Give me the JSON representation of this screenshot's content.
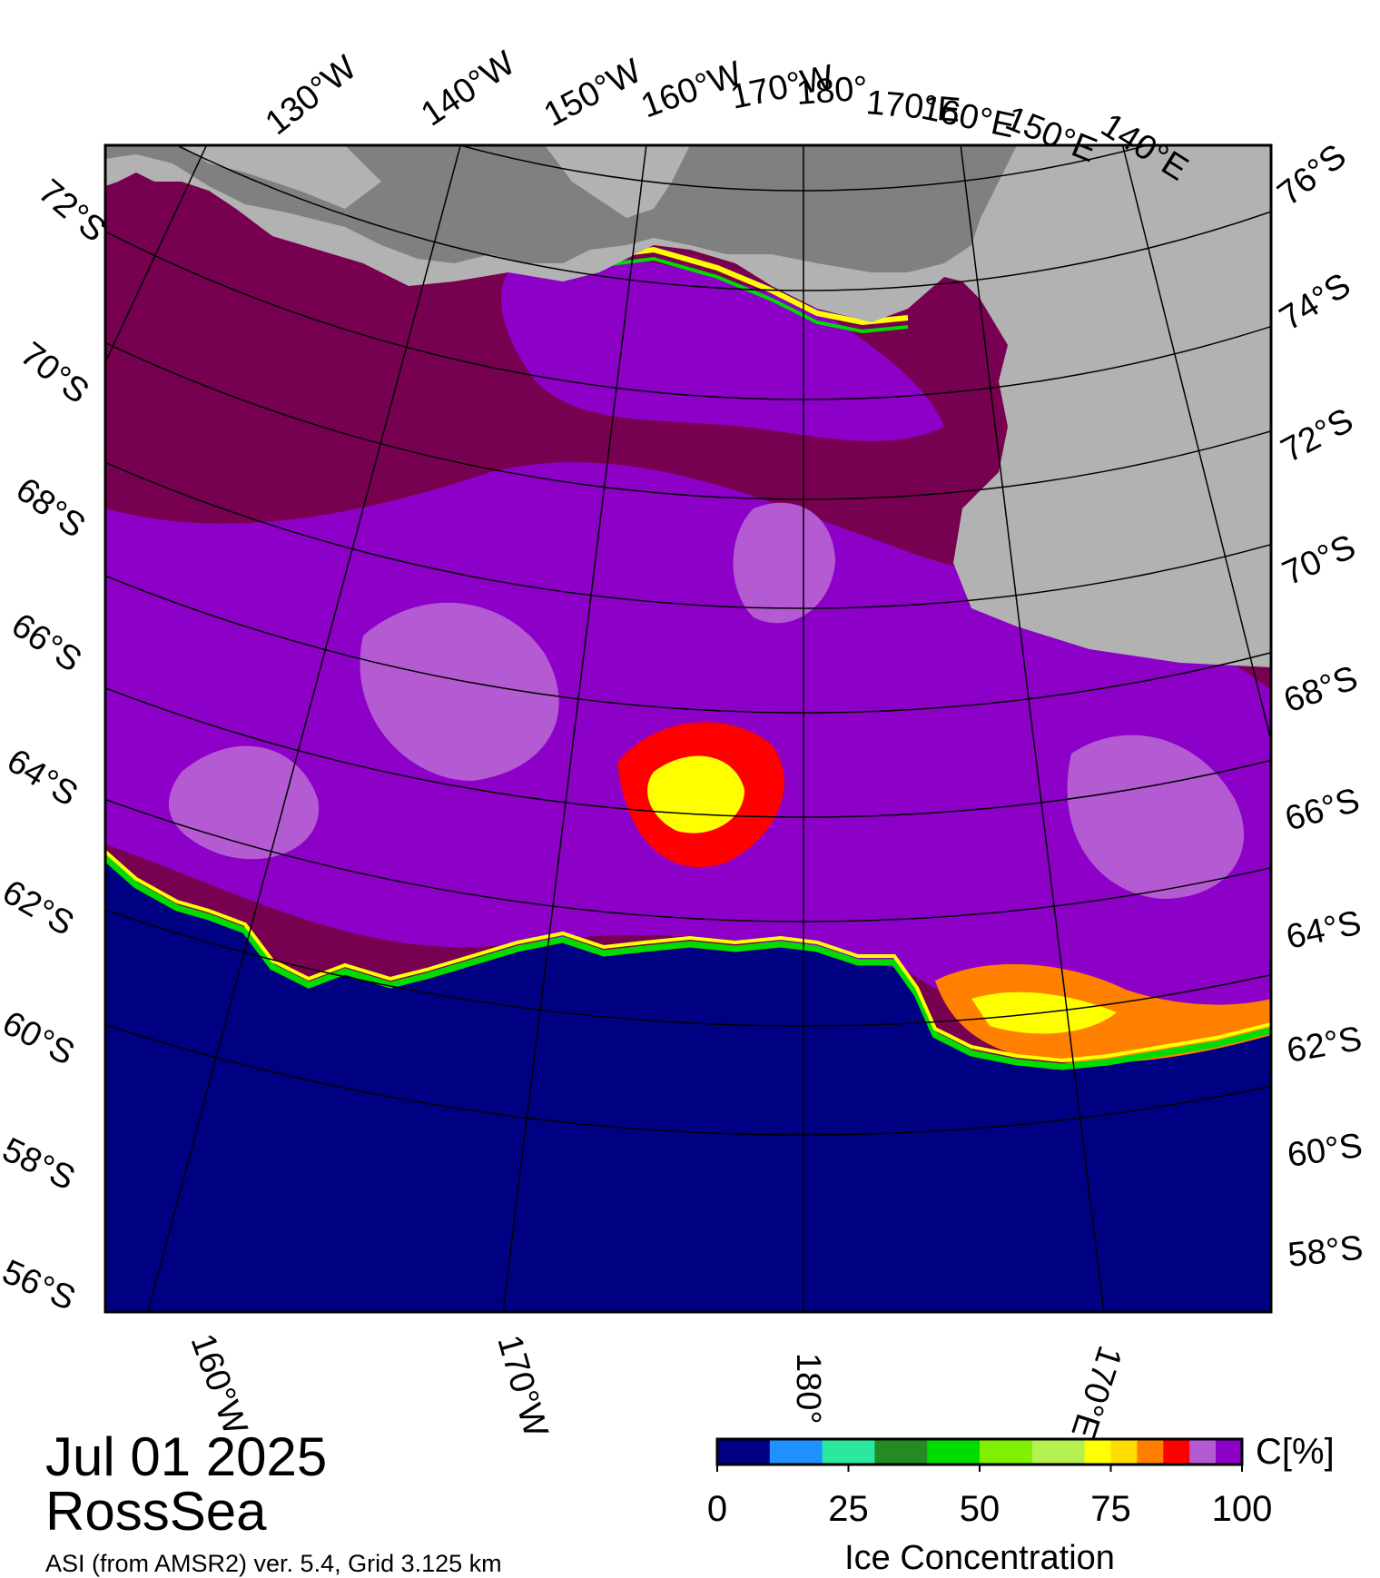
{
  "map": {
    "date": "Jul 01 2025",
    "region": "RossSea",
    "source_note": "ASI (from AMSR2) ver. 5.4,  Grid 3.125 km",
    "colors": {
      "ocean": "#000082",
      "land": "#b2b2b2",
      "ice_shelf": "#808080",
      "ice_full": "#780050",
      "ice_high": "#8c00c8",
      "ice_mid": "#b45ad2",
      "grid": "#000000"
    },
    "lon_labels_top": [
      "130°W",
      "140°W",
      "150°W",
      "160°W",
      "170°W",
      "180°",
      "170°E",
      "160°E",
      "150°E",
      "140°E"
    ],
    "lon_labels_bottom": [
      "160°W",
      "170°W",
      "180°",
      "170°E"
    ],
    "lat_labels_left": [
      "72°S",
      "70°S",
      "68°S",
      "66°S",
      "64°S",
      "62°S",
      "60°S",
      "58°S",
      "56°S"
    ],
    "lat_labels_right": [
      "76°S",
      "74°S",
      "72°S",
      "70°S",
      "68°S",
      "66°S",
      "64°S",
      "62°S",
      "60°S",
      "58°S"
    ]
  },
  "colorbar": {
    "title": "Ice Concentration",
    "unit": "C[%]",
    "tick_labels": [
      "0",
      "25",
      "50",
      "75",
      "100"
    ],
    "bins": [
      {
        "from": 0,
        "to": 10,
        "color": "#000082"
      },
      {
        "from": 10,
        "to": 20,
        "color": "#1e90ff"
      },
      {
        "from": 20,
        "to": 30,
        "color": "#2ae8a0"
      },
      {
        "from": 30,
        "to": 40,
        "color": "#228b22"
      },
      {
        "from": 40,
        "to": 50,
        "color": "#00dc00"
      },
      {
        "from": 50,
        "to": 60,
        "color": "#7ff000"
      },
      {
        "from": 60,
        "to": 70,
        "color": "#b4f050"
      },
      {
        "from": 70,
        "to": 75,
        "color": "#ffff00"
      },
      {
        "from": 75,
        "to": 80,
        "color": "#ffdc00"
      },
      {
        "from": 80,
        "to": 85,
        "color": "#ff8000"
      },
      {
        "from": 85,
        "to": 90,
        "color": "#ff0000"
      },
      {
        "from": 90,
        "to": 95,
        "color": "#b45ad2"
      },
      {
        "from": 95,
        "to": 100,
        "color": "#8c00c8"
      }
    ]
  }
}
